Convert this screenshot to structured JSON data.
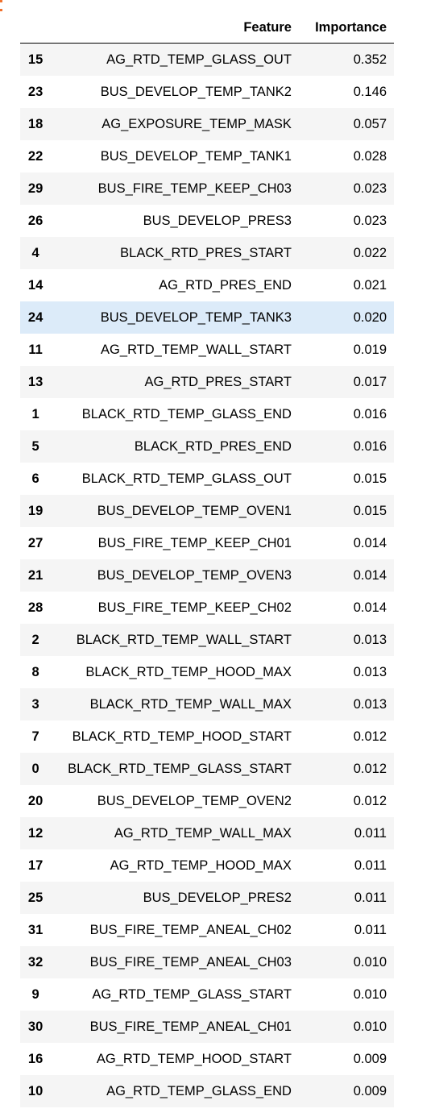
{
  "table": {
    "headers": {
      "index": "",
      "feature": "Feature",
      "importance": "Importance"
    },
    "highlight_color": "#dcebf9",
    "stripe_color": "#f5f5f5",
    "rows": [
      {
        "index": "15",
        "feature": "AG_RTD_TEMP_GLASS_OUT",
        "importance": "0.352"
      },
      {
        "index": "23",
        "feature": "BUS_DEVELOP_TEMP_TANK2",
        "importance": "0.146"
      },
      {
        "index": "18",
        "feature": "AG_EXPOSURE_TEMP_MASK",
        "importance": "0.057"
      },
      {
        "index": "22",
        "feature": "BUS_DEVELOP_TEMP_TANK1",
        "importance": "0.028"
      },
      {
        "index": "29",
        "feature": "BUS_FIRE_TEMP_KEEP_CH03",
        "importance": "0.023"
      },
      {
        "index": "26",
        "feature": "BUS_DEVELOP_PRES3",
        "importance": "0.023"
      },
      {
        "index": "4",
        "feature": "BLACK_RTD_PRES_START",
        "importance": "0.022"
      },
      {
        "index": "14",
        "feature": "AG_RTD_PRES_END",
        "importance": "0.021"
      },
      {
        "index": "24",
        "feature": "BUS_DEVELOP_TEMP_TANK3",
        "importance": "0.020"
      },
      {
        "index": "11",
        "feature": "AG_RTD_TEMP_WALL_START",
        "importance": "0.019"
      },
      {
        "index": "13",
        "feature": "AG_RTD_PRES_START",
        "importance": "0.017"
      },
      {
        "index": "1",
        "feature": "BLACK_RTD_TEMP_GLASS_END",
        "importance": "0.016"
      },
      {
        "index": "5",
        "feature": "BLACK_RTD_PRES_END",
        "importance": "0.016"
      },
      {
        "index": "6",
        "feature": "BLACK_RTD_TEMP_GLASS_OUT",
        "importance": "0.015"
      },
      {
        "index": "19",
        "feature": "BUS_DEVELOP_TEMP_OVEN1",
        "importance": "0.015"
      },
      {
        "index": "27",
        "feature": "BUS_FIRE_TEMP_KEEP_CH01",
        "importance": "0.014"
      },
      {
        "index": "21",
        "feature": "BUS_DEVELOP_TEMP_OVEN3",
        "importance": "0.014"
      },
      {
        "index": "28",
        "feature": "BUS_FIRE_TEMP_KEEP_CH02",
        "importance": "0.014"
      },
      {
        "index": "2",
        "feature": "BLACK_RTD_TEMP_WALL_START",
        "importance": "0.013"
      },
      {
        "index": "8",
        "feature": "BLACK_RTD_TEMP_HOOD_MAX",
        "importance": "0.013"
      },
      {
        "index": "3",
        "feature": "BLACK_RTD_TEMP_WALL_MAX",
        "importance": "0.013"
      },
      {
        "index": "7",
        "feature": "BLACK_RTD_TEMP_HOOD_START",
        "importance": "0.012"
      },
      {
        "index": "0",
        "feature": "BLACK_RTD_TEMP_GLASS_START",
        "importance": "0.012"
      },
      {
        "index": "20",
        "feature": "BUS_DEVELOP_TEMP_OVEN2",
        "importance": "0.012"
      },
      {
        "index": "12",
        "feature": "AG_RTD_TEMP_WALL_MAX",
        "importance": "0.011"
      },
      {
        "index": "17",
        "feature": "AG_RTD_TEMP_HOOD_MAX",
        "importance": "0.011"
      },
      {
        "index": "25",
        "feature": "BUS_DEVELOP_PRES2",
        "importance": "0.011"
      },
      {
        "index": "31",
        "feature": "BUS_FIRE_TEMP_ANEAL_CH02",
        "importance": "0.011"
      },
      {
        "index": "32",
        "feature": "BUS_FIRE_TEMP_ANEAL_CH03",
        "importance": "0.010"
      },
      {
        "index": "9",
        "feature": "AG_RTD_TEMP_GLASS_START",
        "importance": "0.010"
      },
      {
        "index": "30",
        "feature": "BUS_FIRE_TEMP_ANEAL_CH01",
        "importance": "0.010"
      },
      {
        "index": "16",
        "feature": "AG_RTD_TEMP_HOOD_START",
        "importance": "0.009"
      },
      {
        "index": "10",
        "feature": "AG_RTD_TEMP_GLASS_END",
        "importance": "0.009"
      }
    ]
  }
}
